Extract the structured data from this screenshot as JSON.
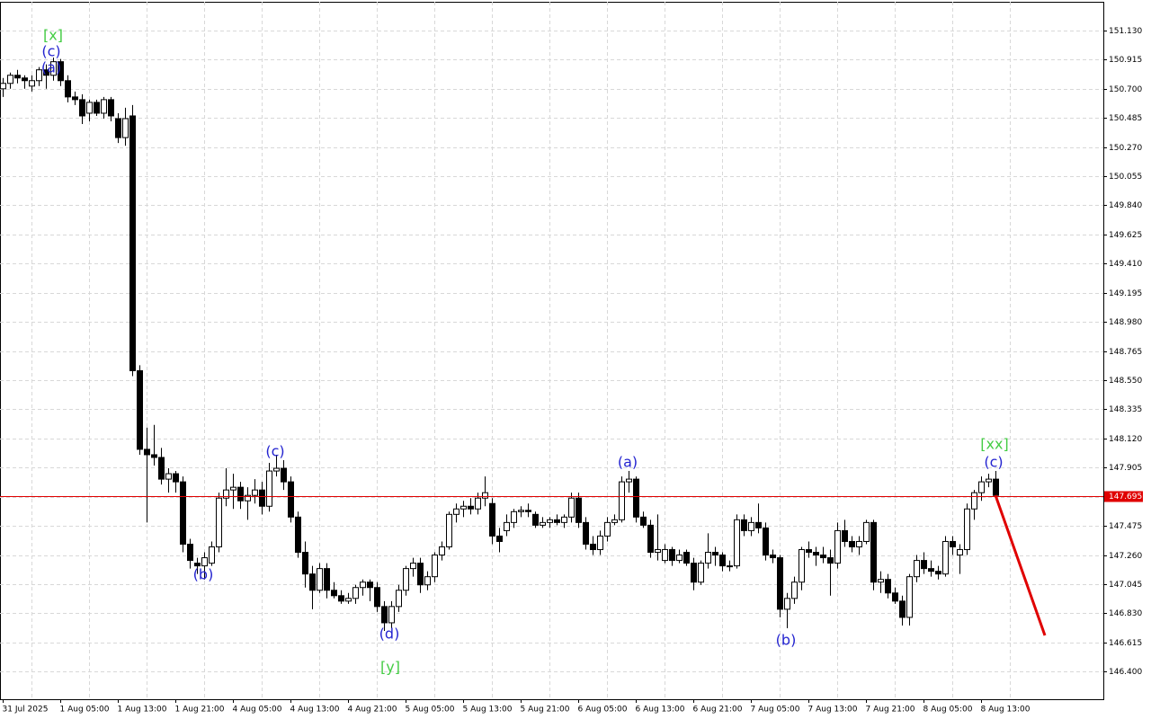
{
  "chart_data": {
    "type": "candlestick",
    "categories": [
      "31 Jul 2025",
      null,
      null,
      null,
      null,
      null,
      null,
      null,
      "1 Aug 05:00",
      null,
      null,
      null,
      null,
      null,
      null,
      null,
      "1 Aug 13:00",
      null,
      null,
      null,
      null,
      null,
      null,
      null,
      "1 Aug 21:00",
      null,
      null,
      null,
      null,
      null,
      null,
      null,
      "4 Aug 05:00",
      null,
      null,
      null,
      null,
      null,
      null,
      null,
      "4 Aug 13:00",
      null,
      null,
      null,
      null,
      null,
      null,
      null,
      "4 Aug 21:00",
      null,
      null,
      null,
      null,
      null,
      null,
      null,
      "5 Aug 05:00",
      null,
      null,
      null,
      null,
      null,
      null,
      null,
      "5 Aug 13:00",
      null,
      null,
      null,
      null,
      null,
      null,
      null,
      "5 Aug 21:00",
      null,
      null,
      null,
      null,
      null,
      null,
      null,
      "6 Aug 05:00",
      null,
      null,
      null,
      null,
      null,
      null,
      null,
      "6 Aug 13:00",
      null,
      null,
      null,
      null,
      null,
      null,
      null,
      "6 Aug 21:00",
      null,
      null,
      null,
      null,
      null,
      null,
      null,
      "7 Aug 05:00",
      null,
      null,
      null,
      null,
      null,
      null,
      null,
      "7 Aug 13:00",
      null,
      null,
      null,
      null,
      null,
      null,
      null,
      "7 Aug 21:00",
      null,
      null,
      null,
      null,
      null,
      null,
      null,
      "8 Aug 05:00",
      null,
      null,
      null,
      null,
      null,
      null,
      null,
      "8 Aug 13:00",
      null,
      null
    ],
    "ohlc": [
      [
        150.7,
        150.78,
        150.64,
        150.74
      ],
      [
        150.74,
        150.82,
        150.7,
        150.8
      ],
      [
        150.8,
        150.84,
        150.74,
        150.78
      ],
      [
        150.78,
        150.8,
        150.7,
        150.76
      ],
      [
        150.72,
        150.8,
        150.68,
        150.76
      ],
      [
        150.76,
        150.86,
        150.72,
        150.84
      ],
      [
        150.84,
        150.88,
        150.7,
        150.8
      ],
      [
        150.8,
        150.93,
        150.76,
        150.9
      ],
      [
        150.9,
        150.92,
        150.72,
        150.76
      ],
      [
        150.76,
        150.8,
        150.6,
        150.64
      ],
      [
        150.64,
        150.68,
        150.58,
        150.62
      ],
      [
        150.62,
        150.66,
        150.44,
        150.5
      ],
      [
        150.52,
        150.62,
        150.46,
        150.6
      ],
      [
        150.6,
        150.62,
        150.5,
        150.52
      ],
      [
        150.52,
        150.64,
        150.48,
        150.62
      ],
      [
        150.62,
        150.64,
        150.46,
        150.5
      ],
      [
        150.48,
        150.52,
        150.3,
        150.34
      ],
      [
        150.34,
        150.56,
        150.28,
        150.48
      ],
      [
        150.5,
        150.58,
        148.58,
        148.62
      ],
      [
        148.62,
        148.66,
        148.0,
        148.04
      ],
      [
        148.04,
        148.2,
        147.5,
        148.0
      ],
      [
        148.0,
        148.22,
        147.92,
        147.98
      ],
      [
        147.98,
        148.05,
        147.78,
        147.82
      ],
      [
        147.82,
        147.9,
        147.72,
        147.86
      ],
      [
        147.86,
        147.88,
        147.72,
        147.8
      ],
      [
        147.8,
        147.84,
        147.28,
        147.34
      ],
      [
        147.34,
        147.38,
        147.16,
        147.22
      ],
      [
        147.2,
        147.24,
        147.12,
        147.18
      ],
      [
        147.18,
        147.28,
        147.08,
        147.24
      ],
      [
        147.2,
        147.36,
        147.18,
        147.32
      ],
      [
        147.32,
        147.72,
        147.28,
        147.68
      ],
      [
        147.68,
        147.9,
        147.62,
        147.74
      ],
      [
        147.74,
        147.86,
        147.6,
        147.76
      ],
      [
        147.76,
        147.8,
        147.6,
        147.66
      ],
      [
        147.66,
        147.76,
        147.52,
        147.7
      ],
      [
        147.7,
        147.82,
        147.64,
        147.74
      ],
      [
        147.74,
        147.8,
        147.56,
        147.62
      ],
      [
        147.62,
        147.94,
        147.58,
        147.88
      ],
      [
        147.88,
        148.0,
        147.84,
        147.9
      ],
      [
        147.9,
        147.96,
        147.74,
        147.8
      ],
      [
        147.8,
        147.84,
        147.5,
        147.54
      ],
      [
        147.54,
        147.58,
        147.24,
        147.28
      ],
      [
        147.28,
        147.36,
        147.02,
        147.12
      ],
      [
        147.12,
        147.18,
        146.86,
        147.0
      ],
      [
        147.0,
        147.2,
        146.98,
        147.16
      ],
      [
        147.16,
        147.2,
        146.94,
        147.0
      ],
      [
        147.0,
        147.06,
        146.94,
        146.96
      ],
      [
        146.96,
        147.0,
        146.9,
        146.92
      ],
      [
        146.92,
        146.98,
        146.9,
        146.94
      ],
      [
        146.94,
        147.04,
        146.9,
        147.02
      ],
      [
        147.02,
        147.08,
        146.96,
        147.06
      ],
      [
        147.06,
        147.08,
        146.92,
        147.02
      ],
      [
        147.02,
        147.06,
        146.84,
        146.88
      ],
      [
        146.88,
        146.92,
        146.7,
        146.76
      ],
      [
        146.76,
        146.92,
        146.72,
        146.88
      ],
      [
        146.88,
        147.04,
        146.84,
        147.0
      ],
      [
        147.0,
        147.18,
        146.96,
        147.16
      ],
      [
        147.16,
        147.24,
        147.1,
        147.2
      ],
      [
        147.2,
        147.24,
        146.98,
        147.04
      ],
      [
        147.04,
        147.14,
        147.0,
        147.1
      ],
      [
        147.1,
        147.28,
        147.06,
        147.26
      ],
      [
        147.26,
        147.36,
        147.22,
        147.32
      ],
      [
        147.32,
        147.58,
        147.3,
        147.56
      ],
      [
        147.56,
        147.64,
        147.5,
        147.6
      ],
      [
        147.6,
        147.66,
        147.54,
        147.62
      ],
      [
        147.62,
        147.68,
        147.56,
        147.6
      ],
      [
        147.6,
        147.72,
        147.56,
        147.68
      ],
      [
        147.68,
        147.84,
        147.62,
        147.72
      ],
      [
        147.64,
        147.68,
        147.34,
        147.4
      ],
      [
        147.4,
        147.46,
        147.28,
        147.36
      ],
      [
        147.44,
        147.56,
        147.4,
        147.5
      ],
      [
        147.5,
        147.6,
        147.46,
        147.58
      ],
      [
        147.58,
        147.62,
        147.54,
        147.59
      ],
      [
        147.59,
        147.64,
        147.54,
        147.58
      ],
      [
        147.56,
        147.58,
        147.46,
        147.48
      ],
      [
        147.48,
        147.54,
        147.46,
        147.5
      ],
      [
        147.5,
        147.54,
        147.46,
        147.52
      ],
      [
        147.52,
        147.56,
        147.48,
        147.5
      ],
      [
        147.5,
        147.56,
        147.46,
        147.54
      ],
      [
        147.54,
        147.72,
        147.5,
        147.68
      ],
      [
        147.68,
        147.72,
        147.46,
        147.5
      ],
      [
        147.5,
        147.54,
        147.3,
        147.34
      ],
      [
        147.34,
        147.4,
        147.26,
        147.3
      ],
      [
        147.3,
        147.44,
        147.26,
        147.4
      ],
      [
        147.4,
        147.54,
        147.36,
        147.5
      ],
      [
        147.5,
        147.56,
        147.48,
        147.52
      ],
      [
        147.52,
        147.84,
        147.5,
        147.8
      ],
      [
        147.8,
        147.88,
        147.72,
        147.82
      ],
      [
        147.82,
        147.84,
        147.5,
        147.54
      ],
      [
        147.54,
        147.58,
        147.46,
        147.48
      ],
      [
        147.48,
        147.52,
        147.24,
        147.28
      ],
      [
        147.28,
        147.56,
        147.22,
        147.3
      ],
      [
        147.22,
        147.34,
        147.2,
        147.3
      ],
      [
        147.3,
        147.32,
        147.18,
        147.22
      ],
      [
        147.22,
        147.3,
        147.2,
        147.26
      ],
      [
        147.28,
        147.3,
        147.18,
        147.2
      ],
      [
        147.2,
        147.24,
        147.0,
        147.06
      ],
      [
        147.06,
        147.22,
        147.04,
        147.2
      ],
      [
        147.2,
        147.42,
        147.16,
        147.28
      ],
      [
        147.28,
        147.32,
        147.18,
        147.26
      ],
      [
        147.26,
        147.28,
        147.14,
        147.18
      ],
      [
        147.18,
        147.22,
        147.14,
        147.18
      ],
      [
        147.18,
        147.56,
        147.16,
        147.52
      ],
      [
        147.52,
        147.56,
        147.4,
        147.44
      ],
      [
        147.44,
        147.54,
        147.4,
        147.5
      ],
      [
        147.5,
        147.64,
        147.42,
        147.46
      ],
      [
        147.46,
        147.5,
        147.22,
        147.26
      ],
      [
        147.26,
        147.3,
        147.2,
        147.24
      ],
      [
        147.24,
        147.26,
        146.8,
        146.86
      ],
      [
        146.86,
        146.98,
        146.72,
        146.94
      ],
      [
        146.94,
        147.1,
        146.9,
        147.06
      ],
      [
        147.06,
        147.32,
        147.0,
        147.3
      ],
      [
        147.3,
        147.36,
        147.24,
        147.28
      ],
      [
        147.28,
        147.32,
        147.18,
        147.26
      ],
      [
        147.26,
        147.32,
        147.2,
        147.24
      ],
      [
        147.24,
        147.3,
        146.96,
        147.2
      ],
      [
        147.2,
        147.5,
        147.16,
        147.44
      ],
      [
        147.44,
        147.52,
        147.32,
        147.36
      ],
      [
        147.36,
        147.4,
        147.28,
        147.32
      ],
      [
        147.32,
        147.4,
        147.26,
        147.36
      ],
      [
        147.36,
        147.52,
        147.34,
        147.5
      ],
      [
        147.5,
        147.52,
        147.0,
        147.06
      ],
      [
        147.06,
        147.14,
        146.98,
        147.08
      ],
      [
        147.08,
        147.12,
        146.94,
        146.98
      ],
      [
        146.98,
        147.02,
        146.9,
        146.92
      ],
      [
        146.92,
        146.96,
        146.74,
        146.8
      ],
      [
        146.8,
        147.12,
        146.74,
        147.1
      ],
      [
        147.1,
        147.26,
        147.06,
        147.22
      ],
      [
        147.22,
        147.28,
        147.12,
        147.16
      ],
      [
        147.16,
        147.22,
        147.1,
        147.14
      ],
      [
        147.14,
        147.18,
        147.08,
        147.12
      ],
      [
        147.12,
        147.4,
        147.1,
        147.36
      ],
      [
        147.36,
        147.4,
        147.26,
        147.32
      ],
      [
        147.26,
        147.34,
        147.12,
        147.3
      ],
      [
        147.3,
        147.64,
        147.26,
        147.6
      ],
      [
        147.6,
        147.74,
        147.52,
        147.72
      ],
      [
        147.72,
        147.84,
        147.66,
        147.8
      ],
      [
        147.8,
        147.86,
        147.76,
        147.82
      ],
      [
        147.82,
        147.88,
        147.68,
        147.7
      ]
    ],
    "ylim": [
      146.196,
      151.342
    ],
    "yticks": [
      {
        "value": 146.4,
        "label": "146.400"
      },
      146.615,
      {
        "value": 146.83,
        "label": "146.830"
      },
      147.045,
      {
        "value": 147.26,
        "label": "147.260"
      },
      147.475,
      {
        "value": 147.69,
        "label": "147.690"
      },
      147.905,
      {
        "value": 148.12,
        "label": "148.120"
      },
      148.335,
      {
        "value": 148.55,
        "label": "148.550"
      },
      148.765,
      {
        "value": 148.98,
        "label": "148.980"
      },
      149.195,
      {
        "value": 149.41,
        "label": "149.410"
      },
      149.625,
      {
        "value": 149.84,
        "label": "149.840"
      },
      150.055,
      {
        "value": 150.27,
        "label": "150.270"
      },
      150.485,
      {
        "value": 150.7,
        "label": "150.700"
      },
      150.915,
      {
        "value": 151.13,
        "label": "151.130"
      }
    ],
    "grid": true,
    "up_color": "#ffffff",
    "down_color": "#000000",
    "current_price": {
      "value": 147.695,
      "label": "147.695",
      "color": "#e00000"
    },
    "annotations": [
      "[x]",
      "(c)",
      "(a)",
      "(b)",
      "(c)",
      "(d)",
      "[y]",
      "(a)",
      "(b)",
      "[xx]",
      "(c)"
    ]
  }
}
